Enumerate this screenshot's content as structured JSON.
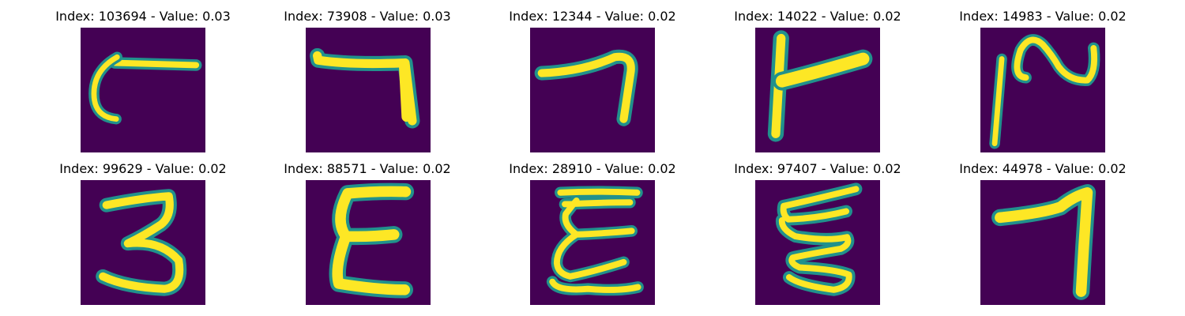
{
  "colors": {
    "background": "#440154",
    "edge": "#21918c",
    "mid": "#5ec962",
    "stroke": "#fde725"
  },
  "panels": [
    {
      "title": "Index: 103694 - Value: 0.03",
      "icon": "digit-hook-icon"
    },
    {
      "title": "Index: 73908 - Value: 0.03",
      "icon": "digit-seven-icon"
    },
    {
      "title": "Index: 12344 - Value: 0.02",
      "icon": "digit-seven-icon"
    },
    {
      "title": "Index: 14022 - Value: 0.02",
      "icon": "digit-four-like-icon"
    },
    {
      "title": "Index: 14983 - Value: 0.02",
      "icon": "digit-two-like-icon"
    },
    {
      "title": "Index: 99629 - Value: 0.02",
      "icon": "digit-three-icon"
    },
    {
      "title": "Index: 88571 - Value: 0.02",
      "icon": "digit-sigma-icon"
    },
    {
      "title": "Index: 28910 - Value: 0.02",
      "icon": "digit-epsilon-icon"
    },
    {
      "title": "Index: 97407 - Value: 0.02",
      "icon": "digit-zigzag-icon"
    },
    {
      "title": "Index: 44978 - Value: 0.02",
      "icon": "digit-seven-icon"
    }
  ]
}
